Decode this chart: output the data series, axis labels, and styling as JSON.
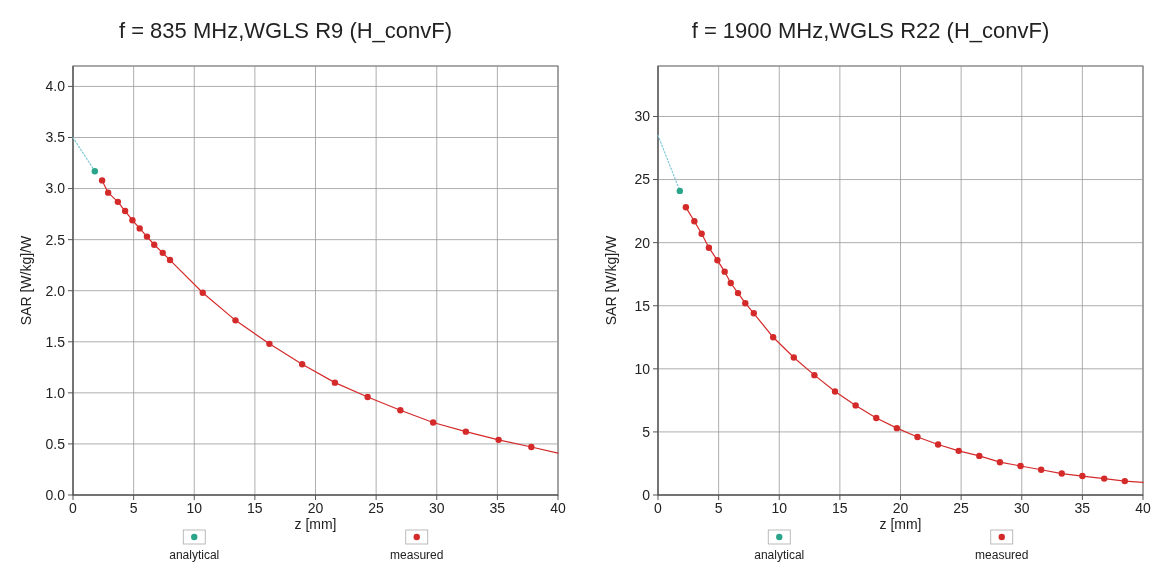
{
  "chart_data": [
    {
      "type": "line",
      "title": "f = 835 MHz,WGLS R9 (H_convF)",
      "xlabel": "z [mm]",
      "ylabel": "SAR [W/kg]/W",
      "xlim": [
        0,
        40
      ],
      "xticks": [
        0,
        5,
        10,
        15,
        20,
        25,
        30,
        35,
        40
      ],
      "ylim": [
        0,
        4.2
      ],
      "yticks": [
        {
          "value": 0,
          "label": "0.0"
        },
        0.5,
        {
          "value": 1,
          "label": "1.0"
        },
        1.5,
        {
          "value": 2,
          "label": "2.0"
        },
        2.5,
        {
          "value": 3,
          "label": "3.0"
        },
        3.5,
        {
          "value": 4,
          "label": "4.0"
        }
      ],
      "grid": true,
      "legend": "bottom",
      "series": [
        {
          "color": "#7fc8d8",
          "line_style": "dotted",
          "x": [
            0,
            1.8
          ],
          "values": [
            3.5,
            3.17
          ]
        },
        {
          "color": "#d42a2a",
          "line_style": "solid",
          "x": [
            2.4,
            2.9,
            3.7,
            4.3,
            4.9,
            5.5,
            6.1,
            6.7,
            7.4,
            8.0,
            10.7,
            13.4,
            16.2,
            18.9,
            21.6,
            24.3,
            27.0,
            29.7,
            32.4,
            35.1,
            37.8,
            40
          ],
          "values": [
            3.08,
            2.96,
            2.87,
            2.78,
            2.69,
            2.61,
            2.53,
            2.45,
            2.37,
            2.3,
            1.98,
            1.71,
            1.48,
            1.28,
            1.1,
            0.96,
            0.83,
            0.71,
            0.62,
            0.54,
            0.47,
            0.41
          ]
        },
        {
          "type": "scatter",
          "name": "analytical",
          "color": "#2aa58a",
          "marker": "circle",
          "x": [
            1.8
          ],
          "values": [
            3.17
          ]
        },
        {
          "type": "scatter",
          "name": "measured",
          "color": "#d42a2a",
          "marker": "circle",
          "x": [
            2.4,
            2.9,
            3.7,
            4.3,
            4.9,
            5.5,
            6.1,
            6.7,
            7.4,
            8.0,
            10.7,
            13.4,
            16.2,
            18.9,
            21.6,
            24.3,
            27.0,
            29.7,
            32.4,
            35.1,
            37.8
          ],
          "values": [
            3.08,
            2.96,
            2.87,
            2.78,
            2.69,
            2.61,
            2.53,
            2.45,
            2.37,
            2.3,
            1.98,
            1.71,
            1.48,
            1.28,
            1.1,
            0.96,
            0.83,
            0.71,
            0.62,
            0.54,
            0.47
          ]
        }
      ]
    },
    {
      "type": "line",
      "title": "f = 1900 MHz,WGLS R22 (H_convF)",
      "xlabel": "z [mm]",
      "ylabel": "SAR [W/kg]/W",
      "xlim": [
        0,
        40
      ],
      "xticks": [
        0,
        5,
        10,
        15,
        20,
        25,
        30,
        35,
        40
      ],
      "ylim": [
        0,
        34
      ],
      "yticks": [
        0,
        5,
        10,
        15,
        20,
        25,
        30
      ],
      "grid": true,
      "legend": "bottom",
      "series": [
        {
          "color": "#7fc8d8",
          "line_style": "dotted",
          "x": [
            0,
            1.8
          ],
          "values": [
            28.5,
            24.1
          ]
        },
        {
          "color": "#d42a2a",
          "line_style": "solid",
          "x": [
            2.3,
            3.0,
            3.6,
            4.2,
            4.9,
            5.5,
            6.0,
            6.6,
            7.2,
            7.9,
            9.5,
            11.2,
            12.9,
            14.6,
            16.3,
            18.0,
            19.7,
            21.4,
            23.1,
            24.8,
            26.5,
            28.2,
            29.9,
            31.6,
            33.3,
            35.0,
            36.8,
            38.5,
            40
          ],
          "values": [
            22.8,
            21.7,
            20.7,
            19.6,
            18.6,
            17.7,
            16.8,
            16.0,
            15.2,
            14.4,
            12.5,
            10.9,
            9.5,
            8.2,
            7.1,
            6.1,
            5.3,
            4.6,
            4.0,
            3.5,
            3.1,
            2.6,
            2.3,
            2.0,
            1.7,
            1.5,
            1.3,
            1.1,
            1.0
          ]
        },
        {
          "type": "scatter",
          "name": "analytical",
          "color": "#2aa58a",
          "marker": "circle",
          "x": [
            1.8
          ],
          "values": [
            24.1
          ]
        },
        {
          "type": "scatter",
          "name": "measured",
          "color": "#d42a2a",
          "marker": "circle",
          "x": [
            2.3,
            3.0,
            3.6,
            4.2,
            4.9,
            5.5,
            6.0,
            6.6,
            7.2,
            7.9,
            9.5,
            11.2,
            12.9,
            14.6,
            16.3,
            18.0,
            19.7,
            21.4,
            23.1,
            24.8,
            26.5,
            28.2,
            29.9,
            31.6,
            33.3,
            35.0,
            36.8,
            38.5
          ],
          "values": [
            22.8,
            21.7,
            20.7,
            19.6,
            18.6,
            17.7,
            16.8,
            16.0,
            15.2,
            14.4,
            12.5,
            10.9,
            9.5,
            8.2,
            7.1,
            6.1,
            5.3,
            4.6,
            4.0,
            3.5,
            3.1,
            2.6,
            2.3,
            2.0,
            1.7,
            1.5,
            1.3,
            1.1
          ]
        }
      ]
    }
  ]
}
